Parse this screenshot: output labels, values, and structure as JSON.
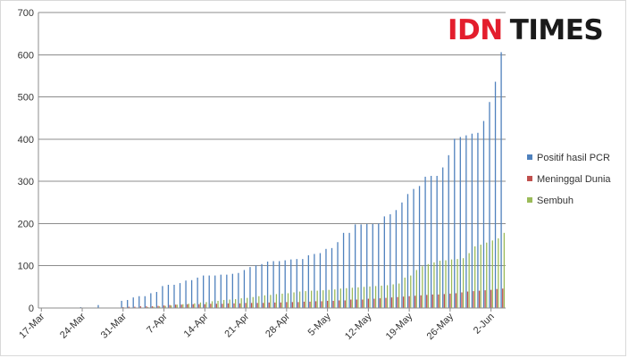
{
  "brand": {
    "idn": "IDN",
    "times": "TIMES"
  },
  "chart_data": {
    "type": "bar",
    "ylim": [
      0,
      700
    ],
    "yticks": [
      0,
      100,
      200,
      300,
      400,
      500,
      600,
      700
    ],
    "grid": true,
    "legend_position": "right",
    "start_date": "17-Mar",
    "x_tick_labels": [
      "17-Mar",
      "24-Mar",
      "31-Mar",
      "7-Apr",
      "14-Apr",
      "21-Apr",
      "28-Apr",
      "5-May",
      "12-May",
      "19-May",
      "26-May",
      "2-Jun"
    ],
    "series": [
      {
        "name": "Positif hasil PCR",
        "color": "#4f81bd",
        "values": [
          1,
          0,
          0,
          0,
          0,
          0,
          0,
          2,
          1,
          0,
          7,
          0,
          0,
          0,
          17,
          19,
          25,
          28,
          28,
          35,
          38,
          52,
          55,
          55,
          59,
          65,
          66,
          72,
          77,
          77,
          77,
          79,
          79,
          81,
          83,
          90,
          97,
          101,
          104,
          110,
          111,
          111,
          113,
          115,
          116,
          116,
          125,
          128,
          130,
          140,
          142,
          156,
          178,
          178,
          198,
          198,
          199,
          199,
          200,
          217,
          222,
          232,
          250,
          270,
          282,
          289,
          311,
          313,
          313,
          333,
          362,
          401,
          405,
          409,
          413,
          415,
          443,
          488,
          536,
          606
        ]
      },
      {
        "name": "Meninggal Dunia",
        "color": "#c0504d",
        "values": [
          0,
          0,
          0,
          0,
          0,
          0,
          0,
          0,
          0,
          0,
          0,
          0,
          0,
          0,
          2,
          3,
          3,
          4,
          4,
          4,
          5,
          6,
          7,
          8,
          8,
          9,
          9,
          9,
          9,
          10,
          10,
          10,
          11,
          11,
          11,
          12,
          12,
          12,
          12,
          13,
          13,
          13,
          14,
          14,
          14,
          15,
          15,
          16,
          16,
          17,
          17,
          18,
          18,
          20,
          20,
          20,
          22,
          22,
          23,
          24,
          25,
          26,
          27,
          28,
          29,
          30,
          31,
          32,
          32,
          33,
          34,
          35,
          37,
          39,
          40,
          41,
          42,
          43,
          45,
          46
        ]
      },
      {
        "name": "Sembuh",
        "color": "#9bbb59",
        "values": [
          0,
          0,
          0,
          0,
          0,
          0,
          0,
          0,
          0,
          0,
          0,
          0,
          0,
          0,
          0,
          0,
          1,
          1,
          2,
          3,
          4,
          5,
          6,
          8,
          9,
          10,
          11,
          13,
          14,
          16,
          17,
          19,
          20,
          21,
          23,
          24,
          26,
          28,
          30,
          31,
          33,
          34,
          35,
          37,
          39,
          40,
          41,
          41,
          42,
          43,
          44,
          46,
          47,
          48,
          49,
          50,
          51,
          52,
          53,
          54,
          56,
          58,
          72,
          77,
          90,
          99,
          104,
          108,
          112,
          113,
          115,
          116,
          118,
          130,
          146,
          150,
          155,
          160,
          165,
          178
        ]
      }
    ]
  }
}
